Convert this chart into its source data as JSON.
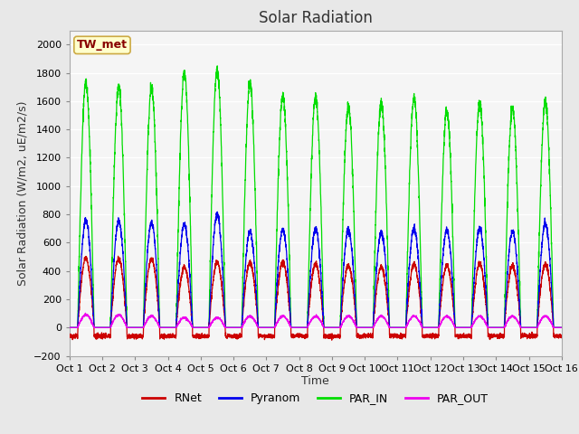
{
  "title": "Solar Radiation",
  "ylabel": "Solar Radiation (W/m2, uE/m2/s)",
  "xlabel": "Time",
  "xlim": [
    0,
    15
  ],
  "ylim": [
    -200,
    2100
  ],
  "yticks": [
    -200,
    0,
    200,
    400,
    600,
    800,
    1000,
    1200,
    1400,
    1600,
    1800,
    2000
  ],
  "xtick_labels": [
    "Oct 1",
    "Oct 2",
    "Oct 3",
    "Oct 4",
    "Oct 5",
    "Oct 6",
    "Oct 7",
    "Oct 8",
    "Oct 9",
    "Oct 10",
    "Oct 11",
    "Oct 12",
    "Oct 13",
    "Oct 14",
    "Oct 15",
    "Oct 16"
  ],
  "xtick_positions": [
    0,
    1,
    2,
    3,
    4,
    5,
    6,
    7,
    8,
    9,
    10,
    11,
    12,
    13,
    14,
    15
  ],
  "colors": {
    "RNet": "#cc0000",
    "Pyranom": "#0000ee",
    "PAR_IN": "#00dd00",
    "PAR_OUT": "#ee00ee"
  },
  "legend_entries": [
    "RNet",
    "Pyranom",
    "PAR_IN",
    "PAR_OUT"
  ],
  "annotation_text": "TW_met",
  "annotation_color": "#880000",
  "annotation_bg": "#ffffcc",
  "annotation_border": "#ccaa44",
  "bg_color": "#e8e8e8",
  "plot_bg": "#f5f5f5",
  "grid_color": "#ffffff",
  "title_fontsize": 12,
  "axis_label_fontsize": 9,
  "tick_fontsize": 8,
  "figsize": [
    6.4,
    4.8
  ],
  "dpi": 100,
  "par_peaks": [
    1730,
    1700,
    1690,
    1800,
    1820,
    1720,
    1640,
    1630,
    1560,
    1580,
    1620,
    1530,
    1580,
    1550,
    1590
  ],
  "pyra_peaks": [
    760,
    750,
    740,
    730,
    800,
    680,
    690,
    700,
    690,
    670,
    700,
    690,
    700,
    680,
    730
  ],
  "rnet_peaks": [
    490,
    490,
    490,
    430,
    460,
    460,
    460,
    450,
    440,
    430,
    450,
    440,
    450,
    440,
    450
  ],
  "parout_peaks": [
    90,
    90,
    80,
    70,
    70,
    80,
    80,
    80,
    80,
    80,
    80,
    80,
    80,
    80,
    80
  ],
  "night_rnet": -60,
  "day_start": 0.25,
  "day_end": 0.75,
  "pts_per_day": 288
}
